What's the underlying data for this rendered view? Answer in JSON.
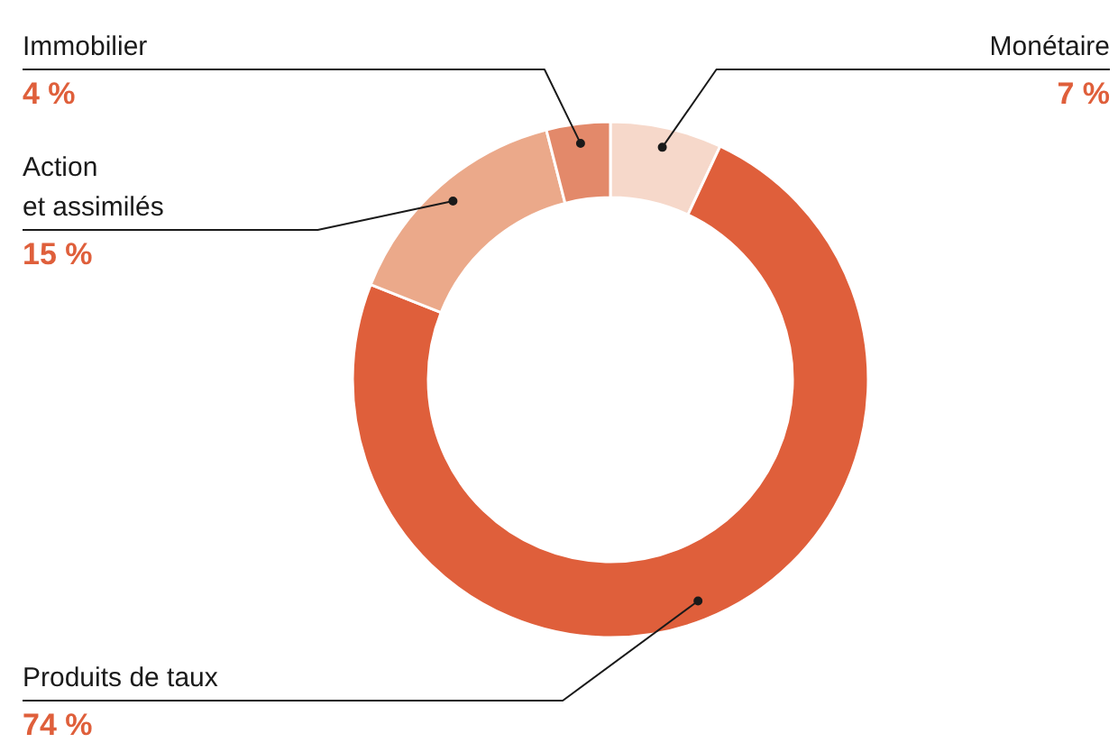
{
  "chart_data": {
    "type": "donut",
    "categories": [
      "Monétaire",
      "Produits de taux",
      "Action\net assimilés",
      "Immobilier"
    ],
    "values": [
      7,
      74,
      15,
      4
    ],
    "colors": [
      "#f6d8ca",
      "#df5f3b",
      "#eba98a",
      "#e3896a"
    ],
    "value_labels": [
      "7 %",
      "74 %",
      "15 %",
      "4 %"
    ]
  }
}
